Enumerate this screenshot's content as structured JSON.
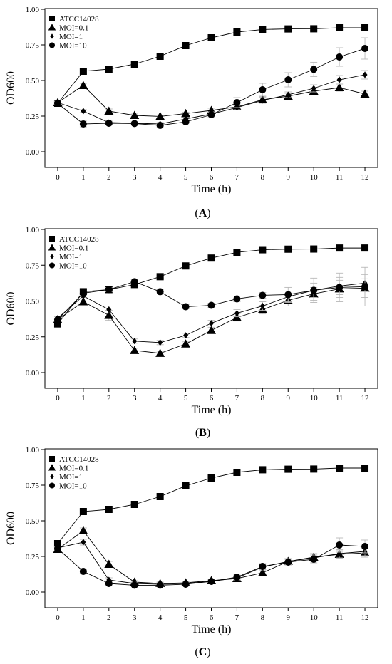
{
  "chart_data": [
    {
      "type": "line",
      "panel_label": "(A)",
      "xlabel": "Time (h)",
      "ylabel": "OD600",
      "x": [
        0,
        1,
        2,
        3,
        4,
        5,
        6,
        7,
        8,
        9,
        10,
        11,
        12
      ],
      "xticks": [
        "0",
        "1",
        "2",
        "3",
        "4",
        "5",
        "6",
        "7",
        "8",
        "9",
        "10",
        "11",
        "12"
      ],
      "ylim": [
        0,
        1.0
      ],
      "yticks": [
        "0.00",
        "0.25",
        "0.50",
        "0.75",
        "1.00"
      ],
      "ytick_values": [
        0,
        0.25,
        0.5,
        0.75,
        1.0
      ],
      "legend_position": "top-left",
      "grid": false,
      "series": [
        {
          "name": "ATCC14028",
          "marker": "square",
          "values": [
            0.34,
            0.565,
            0.58,
            0.615,
            0.67,
            0.745,
            0.8,
            0.84,
            0.858,
            0.862,
            0.863,
            0.87,
            0.87
          ],
          "err": [
            0.01,
            0.015,
            0.01,
            0.01,
            0.01,
            0.01,
            0.01,
            0.015,
            0.01,
            0.01,
            0.01,
            0.01,
            0.01
          ]
        },
        {
          "name": "MOI=0.1",
          "marker": "triangle",
          "values": [
            0.345,
            0.465,
            0.285,
            0.255,
            0.248,
            0.268,
            0.29,
            0.315,
            0.365,
            0.39,
            0.425,
            0.45,
            0.405
          ],
          "err": [
            0.01,
            0.015,
            0.015,
            0.01,
            0.01,
            0.01,
            0.015,
            0.015,
            0.02,
            0.02,
            0.02,
            0.025,
            0.02
          ]
        },
        {
          "name": "MOI=1",
          "marker": "diamond",
          "values": [
            0.345,
            0.285,
            0.205,
            0.2,
            0.195,
            0.23,
            0.265,
            0.31,
            0.36,
            0.4,
            0.445,
            0.505,
            0.54
          ],
          "err": [
            0.01,
            0.01,
            0.01,
            0.01,
            0.01,
            0.01,
            0.015,
            0.015,
            0.02,
            0.02,
            0.025,
            0.03,
            0.03
          ]
        },
        {
          "name": "MOI=10",
          "marker": "circle",
          "values": [
            0.34,
            0.195,
            0.2,
            0.198,
            0.185,
            0.21,
            0.26,
            0.345,
            0.435,
            0.505,
            0.578,
            0.665,
            0.725
          ],
          "err": [
            0.01,
            0.02,
            0.01,
            0.01,
            0.01,
            0.01,
            0.015,
            0.035,
            0.045,
            0.05,
            0.05,
            0.065,
            0.075
          ]
        }
      ]
    },
    {
      "type": "line",
      "panel_label": "(B)",
      "xlabel": "Time (h)",
      "ylabel": "OD600",
      "x": [
        0,
        1,
        2,
        3,
        4,
        5,
        6,
        7,
        8,
        9,
        10,
        11,
        12
      ],
      "xticks": [
        "0",
        "1",
        "2",
        "3",
        "4",
        "5",
        "6",
        "7",
        "8",
        "9",
        "10",
        "11",
        "12"
      ],
      "ylim": [
        0,
        1.0
      ],
      "yticks": [
        "0.00",
        "0.25",
        "0.50",
        "0.75",
        "1.00"
      ],
      "ytick_values": [
        0,
        0.25,
        0.5,
        0.75,
        1.0
      ],
      "legend_position": "top-left",
      "grid": false,
      "series": [
        {
          "name": "ATCC14028",
          "marker": "square",
          "values": [
            0.34,
            0.565,
            0.58,
            0.615,
            0.67,
            0.745,
            0.8,
            0.84,
            0.858,
            0.862,
            0.863,
            0.87,
            0.87
          ],
          "err": [
            0.01,
            0.015,
            0.01,
            0.01,
            0.01,
            0.01,
            0.01,
            0.015,
            0.01,
            0.01,
            0.01,
            0.01,
            0.01
          ]
        },
        {
          "name": "MOI=0.1",
          "marker": "triangle",
          "values": [
            0.37,
            0.495,
            0.4,
            0.155,
            0.135,
            0.2,
            0.295,
            0.385,
            0.44,
            0.505,
            0.55,
            0.585,
            0.59
          ],
          "err": [
            0.01,
            0.02,
            0.035,
            0.015,
            0.015,
            0.015,
            0.02,
            0.025,
            0.03,
            0.04,
            0.045,
            0.06,
            0.065
          ]
        },
        {
          "name": "MOI=1",
          "marker": "diamond",
          "values": [
            0.38,
            0.535,
            0.44,
            0.22,
            0.21,
            0.26,
            0.345,
            0.415,
            0.465,
            0.53,
            0.575,
            0.605,
            0.625
          ],
          "err": [
            0.01,
            0.02,
            0.025,
            0.015,
            0.015,
            0.015,
            0.02,
            0.025,
            0.03,
            0.04,
            0.05,
            0.06,
            0.06
          ]
        },
        {
          "name": "MOI=10",
          "marker": "circle",
          "values": [
            0.37,
            0.555,
            0.58,
            0.635,
            0.565,
            0.46,
            0.47,
            0.515,
            0.54,
            0.545,
            0.575,
            0.595,
            0.6
          ],
          "err": [
            0.01,
            0.015,
            0.015,
            0.015,
            0.015,
            0.015,
            0.015,
            0.02,
            0.02,
            0.05,
            0.085,
            0.1,
            0.135
          ]
        }
      ]
    },
    {
      "type": "line",
      "panel_label": "(C)",
      "xlabel": "Time (h)",
      "ylabel": "OD600",
      "x": [
        0,
        1,
        2,
        3,
        4,
        5,
        6,
        7,
        8,
        9,
        10,
        11,
        12
      ],
      "xticks": [
        "0",
        "1",
        "2",
        "3",
        "4",
        "5",
        "6",
        "7",
        "8",
        "9",
        "10",
        "11",
        "12"
      ],
      "ylim": [
        0,
        1.0
      ],
      "yticks": [
        "0.00",
        "0.25",
        "0.50",
        "0.75",
        "1.00"
      ],
      "ytick_values": [
        0,
        0.25,
        0.5,
        0.75,
        1.0
      ],
      "legend_position": "top-left",
      "grid": false,
      "series": [
        {
          "name": "ATCC14028",
          "marker": "square",
          "values": [
            0.34,
            0.565,
            0.58,
            0.615,
            0.67,
            0.745,
            0.8,
            0.84,
            0.858,
            0.862,
            0.863,
            0.87,
            0.87
          ],
          "err": [
            0.01,
            0.015,
            0.01,
            0.01,
            0.01,
            0.01,
            0.01,
            0.015,
            0.01,
            0.01,
            0.01,
            0.01,
            0.01
          ]
        },
        {
          "name": "MOI=0.1",
          "marker": "triangle",
          "values": [
            0.3,
            0.43,
            0.195,
            0.07,
            0.06,
            0.065,
            0.08,
            0.095,
            0.135,
            0.215,
            0.245,
            0.265,
            0.275
          ],
          "err": [
            0.01,
            0.02,
            0.02,
            0.01,
            0.01,
            0.01,
            0.01,
            0.015,
            0.02,
            0.02,
            0.025,
            0.03,
            0.03
          ]
        },
        {
          "name": "MOI=1",
          "marker": "diamond",
          "values": [
            0.31,
            0.35,
            0.085,
            0.06,
            0.055,
            0.06,
            0.075,
            0.1,
            0.175,
            0.215,
            0.24,
            0.27,
            0.285
          ],
          "err": [
            0.01,
            0.02,
            0.015,
            0.01,
            0.01,
            0.01,
            0.01,
            0.015,
            0.02,
            0.02,
            0.025,
            0.03,
            0.03
          ]
        },
        {
          "name": "MOI=10",
          "marker": "circle",
          "values": [
            0.305,
            0.145,
            0.06,
            0.048,
            0.048,
            0.055,
            0.075,
            0.105,
            0.18,
            0.21,
            0.23,
            0.33,
            0.32
          ],
          "err": [
            0.01,
            0.015,
            0.01,
            0.01,
            0.01,
            0.01,
            0.01,
            0.015,
            0.02,
            0.02,
            0.025,
            0.05,
            0.045
          ]
        }
      ]
    }
  ]
}
